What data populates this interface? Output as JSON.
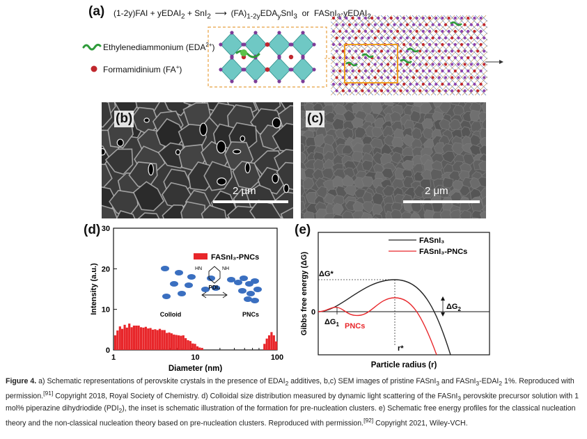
{
  "panel_a": {
    "label": "(a)",
    "equation_left": "(1-2y)FAI + yEDAI",
    "equation_left_sub": "2",
    "equation_left_2": "+ SnI",
    "equation_left_sub2": "2",
    "equation_right": "(FA)",
    "equation_right_sub": "1-2y",
    "equation_right_2": "EDA",
    "equation_right_sub2": "y",
    "equation_right_3": "SnI",
    "equation_right_sub3": "3",
    "equation_or": "or",
    "equation_alt": "FASnI",
    "equation_alt_sub": "3",
    "equation_alt_2": "-yEDAI",
    "equation_alt_sub2": "2",
    "legend_eda": "Ethylenediammonium (EDA",
    "legend_eda_sup": "2+",
    "legend_eda_end": ")",
    "legend_fa": "Formamidinium (FA",
    "legend_fa_sup": "+",
    "legend_fa_end": ")",
    "colors": {
      "octahedra": "#3fb6b0",
      "fa": "#c0272d",
      "iodide": "#7d3c98",
      "eda": "#2e9b3a"
    }
  },
  "panel_b": {
    "label": "(b)",
    "scale_bar": "2 μm"
  },
  "panel_c": {
    "label": "(c)",
    "scale_bar": "2 μm"
  },
  "panel_d": {
    "label": "(d)",
    "legend": "FASnI₃-PNCs",
    "inset_molecule_left": "HN",
    "inset_molecule_right": "NH",
    "inset_reagent": "PDI₂",
    "inset_left_label": "Colloid",
    "inset_right_label": "PNCs",
    "colors": {
      "bars": "#e8262a",
      "particles": "#3a6fc0"
    }
  },
  "panel_e": {
    "label": "(e)",
    "legend_1": "FASnI₃",
    "legend_2": "FASnI₃-PNCs",
    "ylabel": "Gibbs free energy (ΔG)",
    "xlabel": "Particle radius (r)",
    "dg_star": "ΔG*",
    "dg1": "ΔG",
    "dg1_sub": "1",
    "dg2": "ΔG",
    "dg2_sub": "2",
    "pncs_label": "PNCs",
    "rstar": "r*",
    "zero": "0",
    "colors": {
      "classical": "#222222",
      "pncs": "#e8262a"
    }
  },
  "chart_data": {
    "type": "bar",
    "ylabel": "Intensity (a.u.)",
    "xlabel": "Diameter (nm)",
    "xscale": "log",
    "xlim": [
      1,
      100
    ],
    "ylim": [
      0,
      30
    ],
    "xticks": [
      "1",
      "10",
      "100"
    ],
    "yticks": [
      "0",
      "10",
      "20",
      "30"
    ],
    "legend_position": "top-right",
    "series": [
      {
        "name": "FASnI₃-PNCs",
        "x": [
          1.05,
          1.12,
          1.2,
          1.28,
          1.37,
          1.46,
          1.56,
          1.67,
          1.78,
          1.9,
          2.03,
          2.17,
          2.32,
          2.48,
          2.65,
          2.83,
          3.02,
          3.23,
          3.45,
          3.68,
          3.93,
          4.2,
          4.49,
          4.8,
          5.12,
          5.47,
          5.85,
          6.25,
          6.67,
          7.13,
          7.62,
          8.14,
          8.69,
          9.29,
          9.92,
          10.6,
          11.3,
          12.1,
          70.0,
          74.8,
          79.9,
          85.4,
          91.2,
          97.4
        ],
        "values": [
          3.6,
          4.8,
          5.8,
          5.2,
          6.2,
          5.5,
          6.5,
          5.6,
          6.0,
          6.0,
          6.0,
          5.6,
          5.5,
          5.7,
          5.3,
          5.4,
          5.0,
          5.1,
          4.9,
          5.2,
          4.9,
          4.9,
          4.2,
          4.3,
          4.1,
          3.8,
          3.7,
          3.6,
          3.5,
          3.6,
          2.9,
          2.4,
          2.2,
          1.6,
          1.5,
          0.9,
          0.6,
          0.5,
          1.5,
          2.8,
          3.6,
          4.4,
          3.6,
          2.1
        ]
      }
    ]
  },
  "caption": {
    "fig_label": "Figure 4.",
    "text_1": " a) Schematic representations of perovskite crystals in the presence of EDAI",
    "sub_1": "2",
    "text_2": " additives, b,c) SEM images of pristine FASnI",
    "sub_2": "3",
    "text_3": " and FASnI",
    "sub_3": "3",
    "text_4": "-EDAI",
    "sub_4": "2",
    "text_5": " 1%. Reproduced with permission.",
    "ref_1": "[91]",
    "text_6": " Copyright 2018, Royal Society of Chemistry. d) Colloidal size distribution measured by dynamic light scattering of the FASnI",
    "sub_5": "3",
    "text_7": " perovskite precursor solution with 1 mol% piperazine dihydriodide (PDI",
    "sub_6": "2",
    "text_8": "), the inset is schematic illustration of the formation for pre-nucleation clusters. e) Schematic free energy profiles for the classical nucleation theory and the non-classical nucleation theory based on pre-nucleation clusters. Reproduced with permission.",
    "ref_2": "[92]",
    "text_9": " Copyright 2021, Wiley-VCH."
  }
}
